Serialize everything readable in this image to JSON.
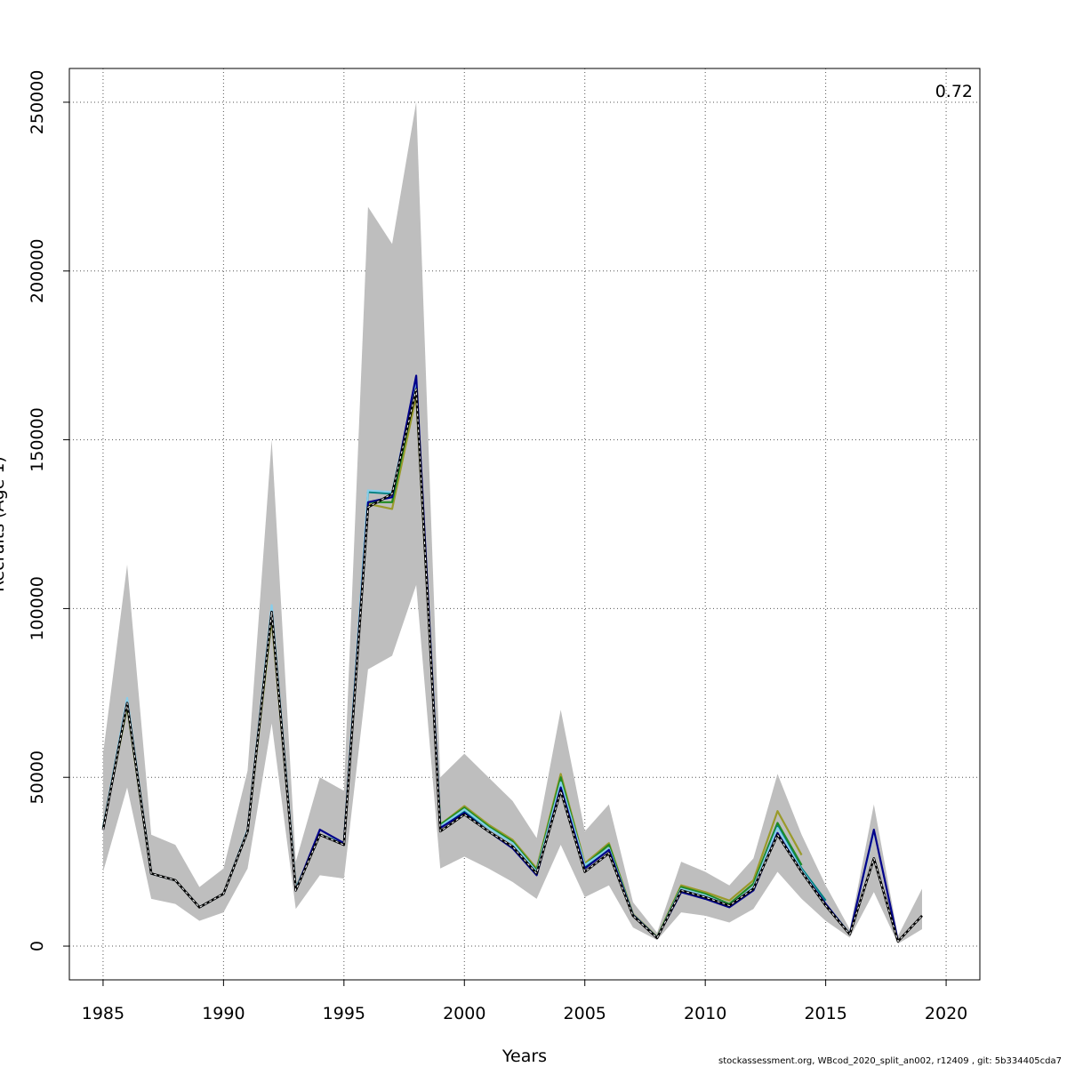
{
  "chart_data": {
    "type": "line",
    "title": "",
    "xlabel": "Years",
    "ylabel": "Recruits (Age 1)",
    "corner_label": "0.72",
    "xlim": [
      1983.6,
      2021.4
    ],
    "ylim": [
      -10000,
      260000
    ],
    "x_ticks": [
      1985,
      1990,
      1995,
      2000,
      2005,
      2010,
      2015,
      2020
    ],
    "y_ticks": [
      0,
      50000,
      100000,
      150000,
      200000,
      250000
    ],
    "grid": true,
    "colors": {
      "band": "#bebebe",
      "base": "#000000",
      "peel1": "#00008b",
      "peel2": "#87ceeb",
      "peel3": "#008080",
      "peel4": "#228b22",
      "peel5": "#9a9a2a"
    },
    "confidence_band": {
      "x": [
        1985,
        1986,
        1987,
        1988,
        1989,
        1990,
        1991,
        1992,
        1993,
        1994,
        1995,
        1996,
        1997,
        1998,
        1999,
        2000,
        2001,
        2002,
        2003,
        2004,
        2005,
        2006,
        2007,
        2008,
        2009,
        2010,
        2011,
        2012,
        2013,
        2014,
        2015,
        2016,
        2017,
        2018,
        2019
      ],
      "lower": [
        22000,
        47000,
        14000,
        12500,
        7500,
        10000,
        23000,
        66000,
        11000,
        21000,
        20000,
        82000,
        86000,
        107000,
        23000,
        26500,
        23000,
        19000,
        14000,
        30000,
        14500,
        18000,
        5500,
        1800,
        10000,
        9000,
        7000,
        11000,
        22000,
        14000,
        7500,
        2500,
        16000,
        700,
        5000
      ],
      "upper": [
        57000,
        113000,
        33000,
        30000,
        17500,
        23000,
        52000,
        150000,
        25000,
        50000,
        46000,
        219000,
        208000,
        250000,
        50000,
        57000,
        50000,
        43000,
        32000,
        70000,
        34000,
        42000,
        13000,
        4000,
        25000,
        22000,
        18000,
        26000,
        51000,
        33000,
        18000,
        5000,
        42000,
        3000,
        17000
      ]
    },
    "series": [
      {
        "key": "base",
        "x": [
          1985,
          1986,
          1987,
          1988,
          1989,
          1990,
          1991,
          1992,
          1993,
          1994,
          1995,
          1996,
          1997,
          1998,
          1999,
          2000,
          2001,
          2002,
          2003,
          2004,
          2005,
          2006,
          2007,
          2008,
          2009,
          2010,
          2011,
          2012,
          2013,
          2014,
          2015,
          2016,
          2017,
          2018,
          2019
        ],
        "values": [
          34500,
          72000,
          21500,
          19500,
          11500,
          15500,
          34000,
          99000,
          16500,
          33000,
          30000,
          130000,
          134000,
          165000,
          34000,
          39000,
          34000,
          29500,
          21500,
          46000,
          22000,
          27500,
          9000,
          2400,
          16500,
          14500,
          12000,
          17000,
          33000,
          22000,
          12000,
          3500,
          26000,
          1400,
          9000
        ]
      },
      {
        "key": "peel1",
        "x": [
          1985,
          1986,
          1987,
          1988,
          1989,
          1990,
          1991,
          1992,
          1993,
          1994,
          1995,
          1996,
          1997,
          1998,
          1999,
          2000,
          2001,
          2002,
          2003,
          2004,
          2005,
          2006,
          2007,
          2008,
          2009,
          2010,
          2011,
          2012,
          2013,
          2014,
          2015,
          2016,
          2017,
          2018
        ],
        "values": [
          34500,
          72000,
          21500,
          19500,
          11500,
          15500,
          34000,
          99000,
          16500,
          34500,
          30500,
          131500,
          133000,
          169000,
          35000,
          39500,
          34000,
          29000,
          21000,
          47000,
          23000,
          28500,
          9200,
          2500,
          16000,
          14000,
          11500,
          16500,
          33500,
          22000,
          12500,
          3500,
          34500,
          1500
        ]
      },
      {
        "key": "peel2",
        "x": [
          1985,
          1986,
          1987,
          1988,
          1989,
          1990,
          1991,
          1992,
          1993,
          1994,
          1995,
          1996,
          1997,
          1998,
          1999,
          2000,
          2001,
          2002,
          2003,
          2004,
          2005,
          2006,
          2007,
          2008,
          2009,
          2010,
          2011,
          2012,
          2013,
          2014,
          2015,
          2016,
          2017
        ],
        "values": [
          35000,
          73500,
          21500,
          19500,
          11500,
          15500,
          34500,
          101000,
          17000,
          33000,
          30500,
          135000,
          134500,
          167000,
          35500,
          40500,
          35000,
          30500,
          22000,
          48500,
          24000,
          29000,
          9300,
          2500,
          17000,
          15000,
          12000,
          17500,
          35000,
          22500,
          12500,
          3600,
          34000
        ]
      },
      {
        "key": "peel3",
        "x": [
          1985,
          1986,
          1987,
          1988,
          1989,
          1990,
          1991,
          1992,
          1993,
          1994,
          1995,
          1996,
          1997,
          1998,
          1999,
          2000,
          2001,
          2002,
          2003,
          2004,
          2005,
          2006,
          2007,
          2008,
          2009,
          2010,
          2011,
          2012,
          2013,
          2014,
          2015
        ],
        "values": [
          35000,
          73000,
          21500,
          19500,
          11500,
          15500,
          34000,
          100000,
          17000,
          33000,
          30500,
          134500,
          134000,
          166000,
          35500,
          40000,
          35000,
          30500,
          22000,
          48000,
          23500,
          29000,
          9200,
          2500,
          17000,
          15000,
          12000,
          17500,
          35500,
          23000,
          13500
        ]
      },
      {
        "key": "peel4",
        "x": [
          1985,
          1986,
          1987,
          1988,
          1989,
          1990,
          1991,
          1992,
          1993,
          1994,
          1995,
          1996,
          1997,
          1998,
          1999,
          2000,
          2001,
          2002,
          2003,
          2004,
          2005,
          2006,
          2007,
          2008,
          2009,
          2010,
          2011,
          2012,
          2013,
          2014
        ],
        "values": [
          35000,
          71500,
          21500,
          19500,
          11500,
          15500,
          34000,
          98500,
          17000,
          33000,
          30500,
          131500,
          131500,
          165500,
          36000,
          41000,
          35500,
          31000,
          22500,
          50000,
          24000,
          30000,
          9300,
          2600,
          17500,
          15500,
          12500,
          18500,
          36500,
          24000
        ]
      },
      {
        "key": "peel5",
        "x": [
          1985,
          1986,
          1987,
          1988,
          1989,
          1990,
          1991,
          1992,
          1993,
          1994,
          1995,
          1996,
          1997,
          1998,
          1999,
          2000,
          2001,
          2002,
          2003,
          2004,
          2005,
          2006,
          2007,
          2008,
          2009,
          2010,
          2011,
          2012,
          2013,
          2014
        ],
        "values": [
          35000,
          71000,
          21500,
          19500,
          11500,
          15500,
          34000,
          97000,
          17000,
          33000,
          30500,
          131000,
          129500,
          163000,
          36000,
          41500,
          36000,
          31500,
          23000,
          51000,
          24500,
          30500,
          9500,
          2700,
          18000,
          16000,
          13500,
          19500,
          40000,
          27000
        ]
      }
    ]
  },
  "footer": "stockassessment.org, WBcod_2020_split_an002, r12409 , git: 5b334405cda7"
}
